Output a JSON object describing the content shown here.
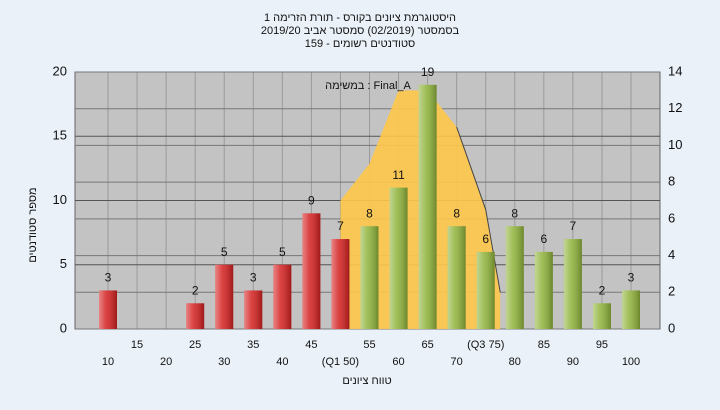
{
  "chart_data": {
    "type": "bar",
    "title_lines": [
      "היסטוגרמת ציונים בקורס - תורת הזרימה 1",
      "בסמסטר  (02/2019)  סמסטר אביב 2019/20",
      "סטודנטים רשומים - 159"
    ],
    "annotation": "במשימה : Final_A",
    "y_label": "מספר סטודנטים",
    "x_label": "טווח ציונים",
    "categories": [
      "10",
      "15",
      "20",
      "25",
      "30",
      "35",
      "40",
      "45",
      "(Q1 50)",
      "55",
      "60",
      "65",
      "70",
      "(Q3 75)",
      "80",
      "85",
      "90",
      "95",
      "100"
    ],
    "values": [
      3,
      null,
      null,
      2,
      5,
      3,
      5,
      9,
      7,
      8,
      11,
      19,
      8,
      6,
      8,
      6,
      7,
      2,
      3
    ],
    "colors": [
      "#d42020",
      "#d42020",
      "#d42020",
      "#d42020",
      "#d42020",
      "#d42020",
      "#d42020",
      "#d42020",
      "#d42020",
      "#8fb33a",
      "#8fb33a",
      "#8fb33a",
      "#8fb33a",
      "#8fb33a",
      "#8fb33a",
      "#8fb33a",
      "#8fb33a",
      "#8fb33a",
      "#8fb33a"
    ],
    "ylim": [
      0,
      20
    ],
    "yticks": [
      0,
      5,
      10,
      15,
      20
    ],
    "y2lim": [
      0,
      14
    ],
    "y2ticks": [
      0,
      2,
      4,
      6,
      8,
      10,
      12,
      14
    ],
    "area": {
      "axis": "y2",
      "color": "#ffc84a",
      "x": [
        8,
        9,
        10,
        11,
        12,
        13,
        13.5
      ],
      "values": [
        7,
        9,
        13,
        13,
        11,
        6.5,
        2
      ]
    },
    "grid": true
  }
}
